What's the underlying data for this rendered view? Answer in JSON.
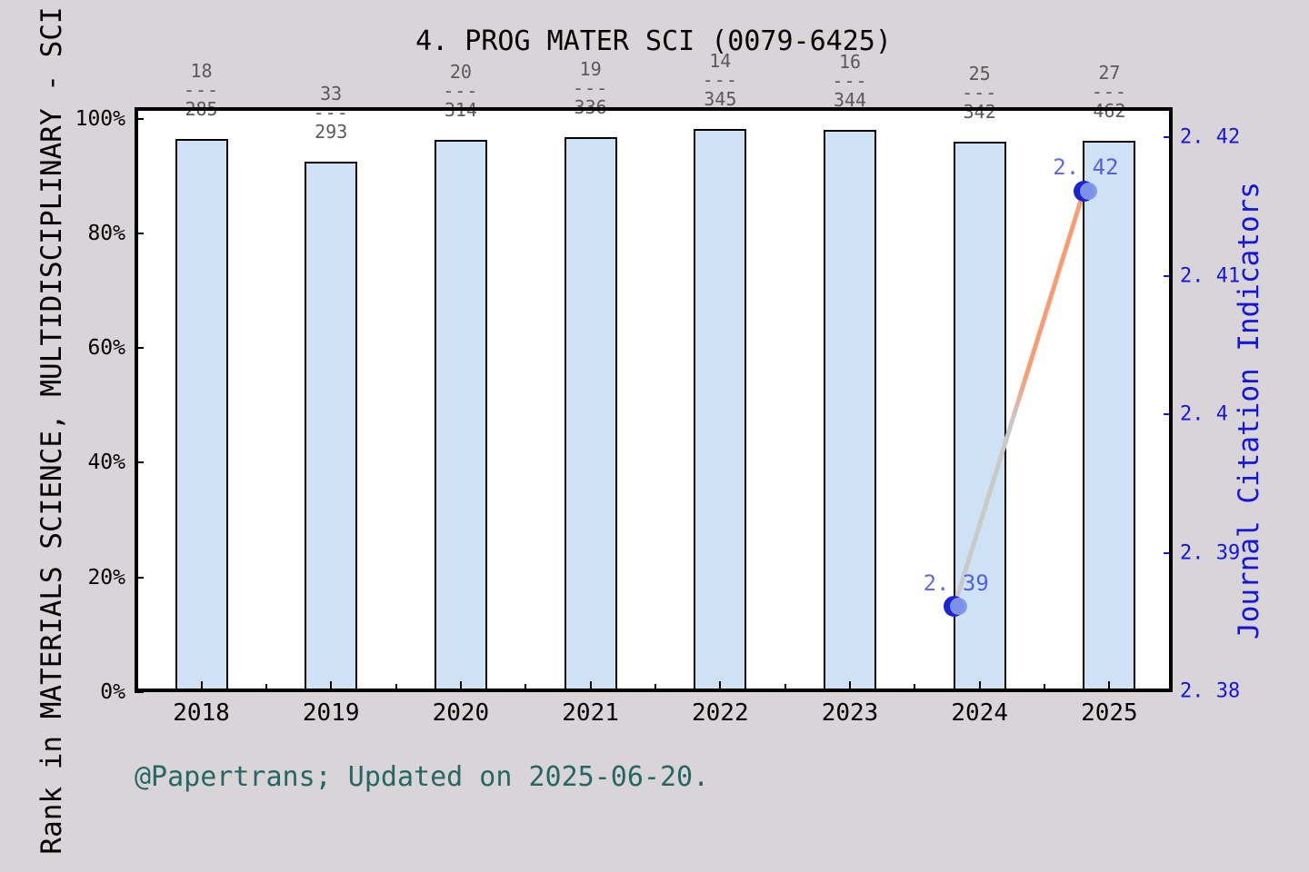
{
  "page": {
    "background": "#d8d4d8",
    "plot_background": "#ffffff"
  },
  "title": "4. PROG MATER SCI (0079-6425)",
  "footer": "@Papertrans; Updated on 2025-06-20.",
  "left_axis": {
    "label": "Rank in MATERIALS SCIENCE, MULTIDISCIPLINARY - SCI",
    "tick_labels": [
      "0%",
      "20%",
      "40%",
      "60%",
      "80%",
      "100%"
    ],
    "tick_values": [
      0,
      20,
      40,
      60,
      80,
      100
    ],
    "color": "#000000"
  },
  "right_axis": {
    "label": "Journal Citation Indicators",
    "tick_labels": [
      "2. 38",
      "2. 39",
      "2. 4",
      "2. 41",
      "2. 42"
    ],
    "tick_values": [
      2.38,
      2.39,
      2.4,
      2.41,
      2.42
    ],
    "color": "#1515dd"
  },
  "x_axis": {
    "tick_labels": [
      "2018",
      "2019",
      "2020",
      "2021",
      "2022",
      "2023",
      "2024",
      "2025"
    ]
  },
  "chart_data": {
    "type": "bar+line",
    "title": "4. PROG MATER SCI (0079-6425)",
    "categories": [
      2018,
      2019,
      2020,
      2021,
      2022,
      2023,
      2024,
      2025
    ],
    "bars": {
      "name": "Rank in MATERIALS SCIENCE, MULTIDISCIPLINARY - SCI (percentile)",
      "rank": [
        18,
        33,
        20,
        19,
        14,
        16,
        25,
        27
      ],
      "total": [
        285,
        293,
        314,
        336,
        345,
        344,
        342,
        462
      ],
      "fraction_labels": [
        "18/285",
        "33/293",
        "20/314",
        "19/336",
        "14/345",
        "16/344",
        "25/342",
        "27/462"
      ],
      "bar_percent": [
        96.4,
        92.5,
        96.3,
        96.8,
        98.2,
        98.0,
        96.0,
        96.1
      ],
      "fill": "#cfe1f5",
      "edge": "#000000"
    },
    "line": {
      "name": "Journal Citation Indicators",
      "x": [
        2024,
        2025
      ],
      "values": [
        2.39,
        2.42
      ],
      "point_labels": [
        "2. 39",
        "2. 42"
      ],
      "color_low": "#c9c9c9",
      "color_high": "#f89d72",
      "marker_color": "#1b24cf",
      "marker_highlight": "#8298e8"
    },
    "ylim_left": [
      0,
      102
    ],
    "right_axis_range": [
      2.38,
      2.42
    ],
    "grid": false,
    "legend": "none"
  }
}
